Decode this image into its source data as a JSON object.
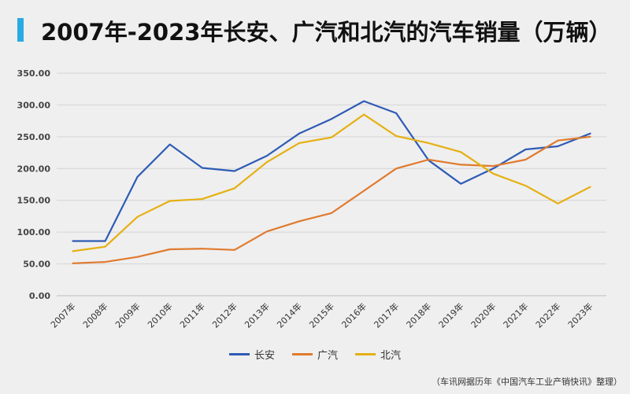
{
  "page": {
    "title": "2007年-2023年长安、广汽和北汽的汽车销量（万辆）",
    "source": "（车讯网据历年《中国汽车工业产销快讯》整理）",
    "accent_color": "#2aaae2"
  },
  "chart_data": {
    "type": "line",
    "title": "2007年-2023年长安、广汽和北汽的汽车销量（万辆）",
    "xlabel": "",
    "ylabel": "",
    "ylim": [
      0,
      350
    ],
    "yticks": [
      "0.00",
      "50.00",
      "100.00",
      "150.00",
      "200.00",
      "250.00",
      "300.00",
      "350.00"
    ],
    "grid": true,
    "legend_position": "bottom",
    "categories": [
      "2007年",
      "2008年",
      "2009年",
      "2010年",
      "2011年",
      "2012年",
      "2013年",
      "2014年",
      "2015年",
      "2016年",
      "2017年",
      "2018年",
      "2019年",
      "2020年",
      "2021年",
      "2022年",
      "2023年"
    ],
    "series": [
      {
        "name": "长安",
        "color": "#2e5bb5",
        "values": [
          86,
          86,
          187,
          238,
          201,
          196,
          220,
          255,
          278,
          306,
          287,
          213,
          176,
          200,
          230,
          235,
          255
        ]
      },
      {
        "name": "广汽",
        "color": "#e07a2e",
        "values": [
          51,
          53,
          61,
          73,
          74,
          72,
          101,
          117,
          130,
          165,
          200,
          214,
          206,
          204,
          214,
          244,
          250
        ]
      },
      {
        "name": "北汽",
        "color": "#e5b012",
        "values": [
          70,
          77,
          124,
          149,
          152,
          169,
          210,
          240,
          249,
          285,
          251,
          240,
          226,
          192,
          173,
          145,
          171
        ]
      }
    ]
  }
}
